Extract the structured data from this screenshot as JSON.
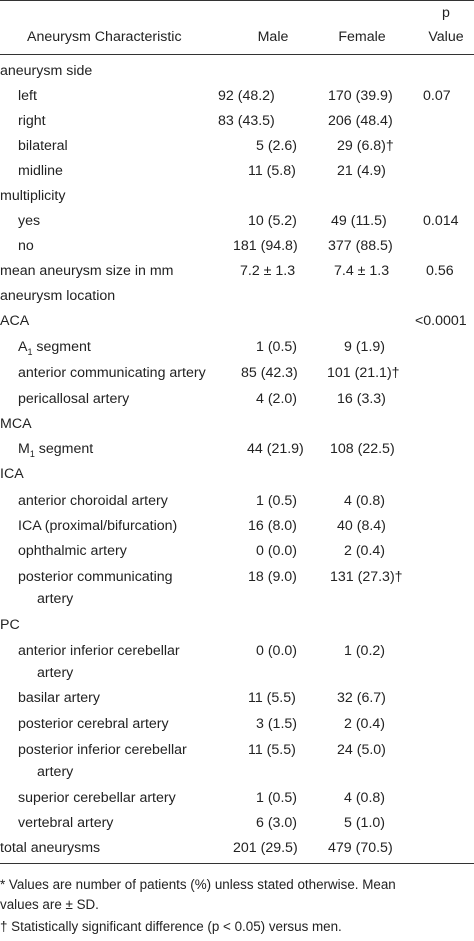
{
  "header": {
    "characteristic": "Aneurysm Characteristic",
    "male": "Male",
    "female": "Female",
    "p_line1": "p",
    "p_line2": "Value"
  },
  "rows": [
    {
      "label": "aneurysm side",
      "male": "",
      "female": "",
      "p": ""
    },
    {
      "label": "left",
      "male": "92 (48.2)",
      "female": "170 (39.9)",
      "p": "0.07"
    },
    {
      "label": "right",
      "male": "83 (43.5)",
      "female": "206 (48.4)",
      "p": ""
    },
    {
      "label": "bilateral",
      "male": "5 (2.6)",
      "female": "29 (6.8)†",
      "p": ""
    },
    {
      "label": "midline",
      "male": "11 (5.8)",
      "female": "21 (4.9)",
      "p": ""
    },
    {
      "label": "multiplicity",
      "male": "",
      "female": "",
      "p": ""
    },
    {
      "label": "yes",
      "male": "10 (5.2)",
      "female": "49 (11.5)",
      "p": "0.014"
    },
    {
      "label": "no",
      "male": "181 (94.8)",
      "female": "377 (88.5)",
      "p": ""
    },
    {
      "label": "mean aneurysm size in mm",
      "male": "7.2 ± 1.3",
      "female": "7.4 ± 1.3",
      "p": "0.56"
    },
    {
      "label": "aneurysm location",
      "male": "",
      "female": "",
      "p": ""
    },
    {
      "label": "ACA",
      "male": "",
      "female": "",
      "p": "<0.0001"
    },
    {
      "label": "A",
      "sub": "1",
      "label_rest": " segment",
      "male": "1 (0.5)",
      "female": "9 (1.9)",
      "p": ""
    },
    {
      "label": "anterior communicating artery",
      "male": "85 (42.3)",
      "female": "101 (21.1)†",
      "p": ""
    },
    {
      "label": "pericallosal artery",
      "male": "4 (2.0)",
      "female": "16 (3.3)",
      "p": ""
    },
    {
      "label": "MCA",
      "male": "",
      "female": "",
      "p": ""
    },
    {
      "label": "M",
      "sub": "1",
      "label_rest": " segment",
      "male": "44 (21.9)",
      "female": "108 (22.5)",
      "p": ""
    },
    {
      "label": "ICA",
      "male": "",
      "female": "",
      "p": ""
    },
    {
      "label": "anterior choroidal artery",
      "male": "1 (0.5)",
      "female": "4 (0.8)",
      "p": ""
    },
    {
      "label": "ICA (proximal/bifurcation)",
      "male": "16 (8.0)",
      "female": "40 (8.4)",
      "p": ""
    },
    {
      "label": "ophthalmic artery",
      "male": "0 (0.0)",
      "female": "2 (0.4)",
      "p": ""
    },
    {
      "label": "posterior communicating",
      "label2": "artery",
      "male": "18 (9.0)",
      "female": "131 (27.3)†",
      "p": ""
    },
    {
      "label": "PC",
      "male": "",
      "female": "",
      "p": ""
    },
    {
      "label": "anterior inferior cerebellar",
      "label2": "artery",
      "male": "0 (0.0)",
      "female": "1 (0.2)",
      "p": ""
    },
    {
      "label": "basilar artery",
      "male": "11 (5.5)",
      "female": "32 (6.7)",
      "p": ""
    },
    {
      "label": "posterior cerebral artery",
      "male": "3 (1.5)",
      "female": "2 (0.4)",
      "p": ""
    },
    {
      "label": "posterior inferior cerebellar",
      "label2": "artery",
      "male": "11 (5.5)",
      "female": "24 (5.0)",
      "p": ""
    },
    {
      "label": "superior cerebellar artery",
      "male": "1 (0.5)",
      "female": "4 (0.8)",
      "p": ""
    },
    {
      "label": "vertebral artery",
      "male": "6 (3.0)",
      "female": "5 (1.0)",
      "p": ""
    },
    {
      "label": "total aneurysms",
      "male": "201 (29.5)",
      "female": "479 (70.5)",
      "p": ""
    }
  ],
  "footnotes": {
    "star_line1": "*  Values are number of patients (%) unless stated otherwise. Mean",
    "star_line2": "values are ± SD.",
    "dagger": "†  Statistically significant difference (p < 0.05) versus men."
  }
}
